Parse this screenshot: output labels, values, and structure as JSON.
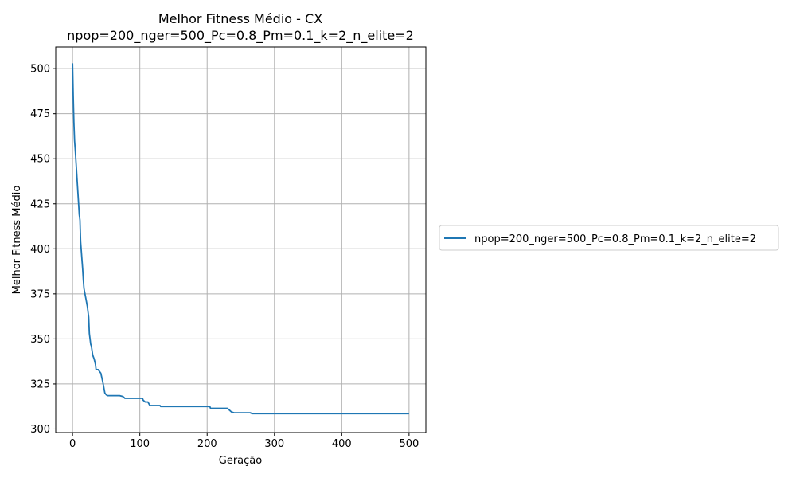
{
  "chart_data": {
    "type": "line",
    "title": "Melhor Fitness Médio - CX",
    "subtitle": "npop=200_nger=500_Pc=0.8_Pm=0.1_k=2_n_elite=2",
    "xlabel": "Geração",
    "ylabel": "Melhor Fitness Médio",
    "xlim": [
      -25,
      525
    ],
    "ylim": [
      298,
      512
    ],
    "xticks": [
      0,
      100,
      200,
      300,
      400,
      500
    ],
    "yticks": [
      300,
      325,
      350,
      375,
      400,
      425,
      450,
      475,
      500
    ],
    "grid": true,
    "legend_position": "right",
    "series": [
      {
        "name": "npop=200_nger=500_Pc=0.8_Pm=0.1_k=2_n_elite=2",
        "color": "#1f77b4",
        "x": [
          0,
          1,
          2,
          3,
          4,
          5,
          6,
          7,
          8,
          9,
          10,
          11,
          12,
          13,
          14,
          15,
          16,
          17,
          18,
          19,
          20,
          22,
          24,
          25,
          26,
          27,
          28,
          30,
          32,
          34,
          35,
          37,
          38,
          42,
          45,
          46,
          47,
          48,
          50,
          52,
          53,
          55,
          58,
          60,
          70,
          75,
          78,
          80,
          82,
          90,
          100,
          104,
          105,
          108,
          112,
          115,
          118,
          130,
          131,
          150,
          180,
          200,
          204,
          205,
          220,
          230,
          233,
          236,
          240,
          264,
          267,
          280,
          300,
          350,
          400,
          450,
          500
        ],
        "y": [
          503,
          485,
          470,
          460,
          455,
          449,
          443,
          437,
          431,
          425,
          419,
          416,
          404,
          399,
          394,
          389,
          383,
          378,
          376,
          374,
          372,
          368,
          362,
          353,
          350,
          347,
          346,
          341,
          339,
          336,
          333,
          333,
          333,
          331,
          326,
          324,
          322,
          320,
          319,
          318.5,
          318.5,
          318.5,
          318.5,
          318.5,
          318.5,
          318,
          317,
          317,
          317,
          317,
          317,
          317,
          316,
          315,
          315,
          313,
          313,
          313,
          312.5,
          312.5,
          312.5,
          312.5,
          312.5,
          311.5,
          311.5,
          311.5,
          310.5,
          309.5,
          309,
          309,
          308.5,
          308.5,
          308.5,
          308.5,
          308.5,
          308.5,
          308.5
        ]
      }
    ]
  }
}
